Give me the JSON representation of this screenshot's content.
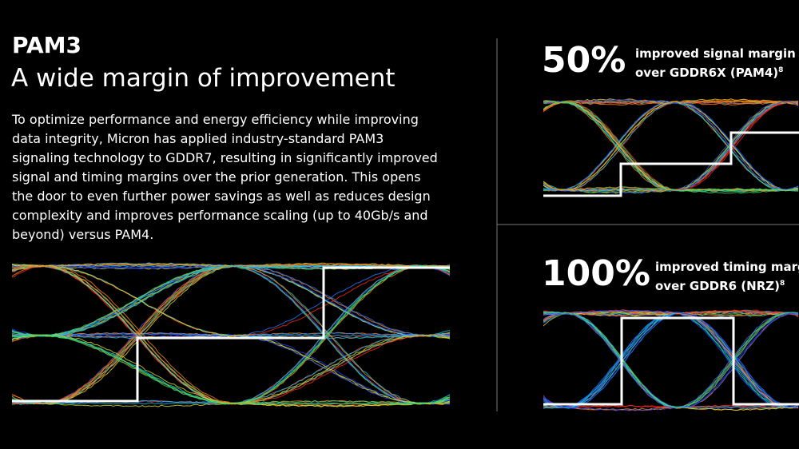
{
  "left": {
    "heading": "PAM3",
    "subheading": "A wide margin of improvement",
    "body_lines": [
      "To optimize performance and energy efficiency while improving",
      "data integrity, Micron has applied industry-standard PAM3",
      "signaling technology to GDDR7, resulting in significantly improved",
      "signal and timing margins over the prior generation. This opens",
      "the door to even further power savings as well as reduces design",
      "complexity and improves performance scaling (up to 40Gb/s and",
      "beyond) versus PAM4."
    ]
  },
  "stats": [
    {
      "figure": "50%",
      "line1": "improved signal margin",
      "line2": "over GDDR6X (PAM4)",
      "footnote": "8"
    },
    {
      "figure": "100%",
      "line1": "improved timing margin",
      "line2": "over GDDR6 (NRZ)",
      "footnote": "8"
    }
  ]
}
